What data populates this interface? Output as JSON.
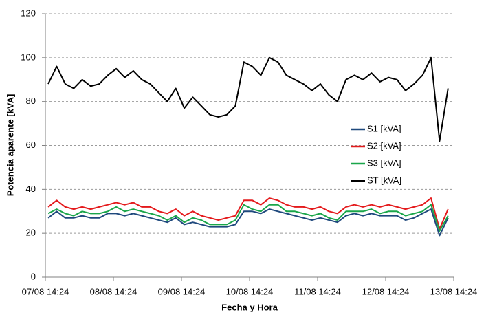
{
  "chart_data": {
    "type": "line",
    "xlabel": "Fecha y Hora",
    "ylabel": "Potencia aparente [kVA]",
    "x": [
      "07/08 15:24",
      "07/08 18:24",
      "07/08 21:24",
      "08/08 00:24",
      "08/08 03:24",
      "08/08 06:24",
      "08/08 09:24",
      "08/08 12:24",
      "08/08 15:24",
      "08/08 18:24",
      "08/08 21:24",
      "09/08 00:24",
      "09/08 03:24",
      "09/08 06:24",
      "09/08 09:24",
      "09/08 12:24",
      "09/08 15:24",
      "09/08 18:24",
      "09/08 21:24",
      "10/08 00:24",
      "10/08 03:24",
      "10/08 06:24",
      "10/08 09:24",
      "10/08 12:24",
      "10/08 15:24",
      "10/08 18:24",
      "10/08 21:24",
      "11/08 00:24",
      "11/08 03:24",
      "11/08 06:24",
      "11/08 09:24",
      "11/08 12:24",
      "11/08 15:24",
      "11/08 18:24",
      "11/08 21:24",
      "12/08 00:24",
      "12/08 03:24",
      "12/08 06:24",
      "12/08 09:24",
      "12/08 12:24",
      "12/08 15:24",
      "12/08 18:24",
      "12/08 21:24",
      "13/08 00:24",
      "13/08 03:24",
      "13/08 06:24",
      "13/08 09:24",
      "13/08 12:24"
    ],
    "series": [
      {
        "name": "S1 [kVA]",
        "color": "#1f497d",
        "values": [
          27,
          30,
          27,
          27,
          28,
          27,
          27,
          29,
          29,
          28,
          29,
          28,
          27,
          26,
          25,
          27,
          24,
          25,
          24,
          23,
          23,
          23,
          24,
          30,
          30,
          29,
          31,
          30,
          29,
          28,
          27,
          26,
          27,
          26,
          25,
          28,
          29,
          28,
          29,
          28,
          28,
          28,
          26,
          27,
          29,
          31,
          19,
          27
        ]
      },
      {
        "name": "S2 [kVA]",
        "color": "#e41a1c",
        "values": [
          32,
          35,
          32,
          31,
          32,
          31,
          32,
          33,
          34,
          33,
          34,
          32,
          32,
          30,
          29,
          31,
          28,
          30,
          28,
          27,
          26,
          27,
          28,
          35,
          35,
          33,
          36,
          35,
          33,
          32,
          32,
          31,
          32,
          30,
          29,
          32,
          33,
          32,
          33,
          32,
          33,
          32,
          31,
          32,
          33,
          36,
          22,
          31
        ]
      },
      {
        "name": "S3 [kVA]",
        "color": "#1aa64a",
        "values": [
          29,
          31,
          29,
          28,
          30,
          29,
          29,
          30,
          32,
          30,
          31,
          30,
          29,
          28,
          26,
          28,
          25,
          27,
          26,
          24,
          24,
          24,
          26,
          33,
          31,
          30,
          33,
          33,
          30,
          30,
          29,
          28,
          29,
          27,
          26,
          30,
          30,
          30,
          31,
          29,
          30,
          30,
          28,
          29,
          30,
          33,
          21,
          28
        ]
      },
      {
        "name": "ST [kVA]",
        "color": "#000000",
        "values": [
          88,
          96,
          88,
          86,
          90,
          87,
          88,
          92,
          95,
          91,
          94,
          90,
          88,
          84,
          80,
          86,
          77,
          82,
          78,
          74,
          73,
          74,
          78,
          98,
          96,
          92,
          100,
          98,
          92,
          90,
          88,
          85,
          88,
          83,
          80,
          90,
          92,
          90,
          93,
          89,
          91,
          90,
          85,
          88,
          92,
          100,
          62,
          86
        ]
      }
    ],
    "xlim": [
      "07/08 14:24",
      "13/08 14:24"
    ],
    "xticks": [
      "07/08 14:24",
      "08/08 14:24",
      "09/08 14:24",
      "10/08 14:24",
      "11/08 14:24",
      "12/08 14:24",
      "13/08 14:24"
    ],
    "ylim": [
      0,
      120
    ],
    "yticks": [
      0,
      20,
      40,
      60,
      80,
      100,
      120
    ],
    "grid": true,
    "legend_position": "right"
  }
}
